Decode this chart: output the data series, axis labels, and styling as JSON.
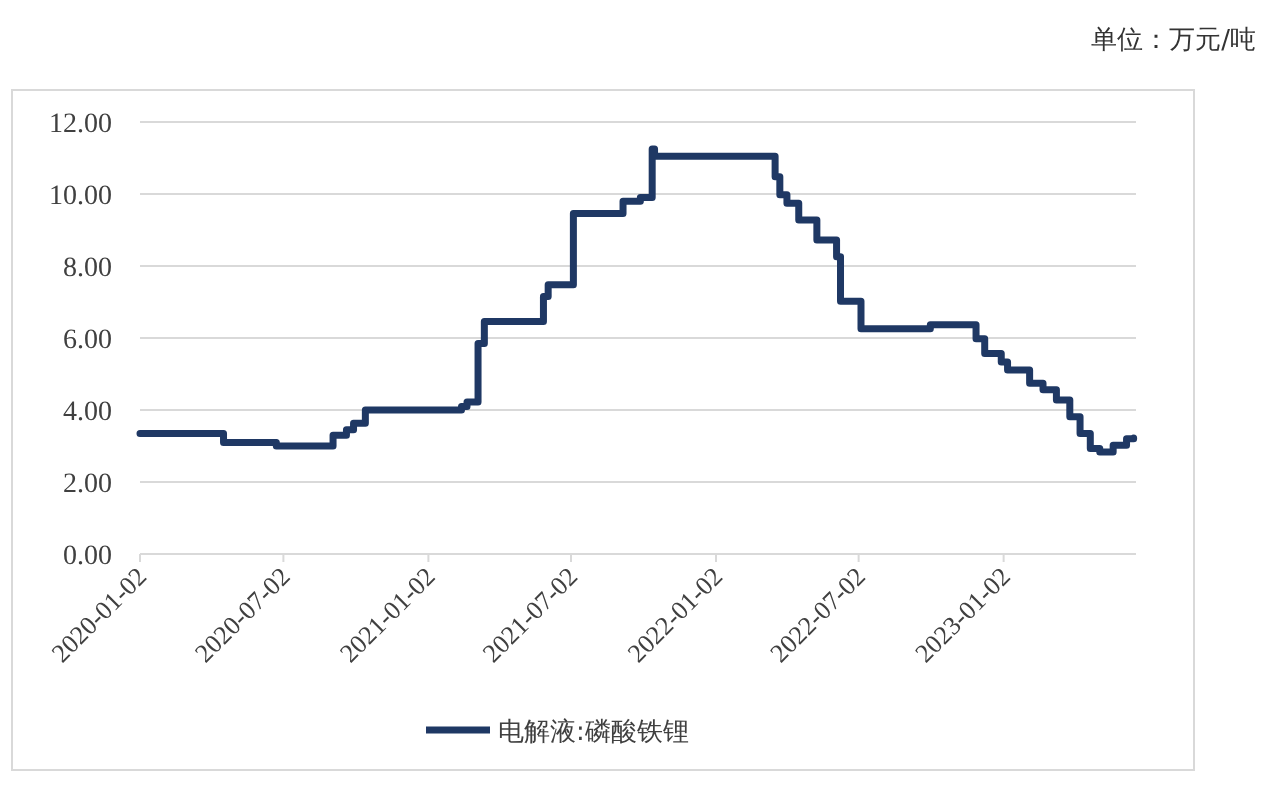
{
  "chart_data": {
    "type": "step",
    "annotations": [
      "单位：万元/吨"
    ],
    "x": [
      "2020-01-02",
      "2020-04-17",
      "2020-06-23",
      "2020-09-03",
      "2020-09-20",
      "2020-09-29",
      "2020-10-14",
      "2021-02-13",
      "2021-02-20",
      "2021-03-06",
      "2021-03-14",
      "2021-05-28",
      "2021-06-03",
      "2021-07-05",
      "2021-09-06",
      "2021-09-28",
      "2021-10-13",
      "2021-10-16",
      "2022-03-18",
      "2022-03-24",
      "2022-04-02",
      "2022-04-17",
      "2022-05-10",
      "2022-06-04",
      "2022-06-09",
      "2022-07-05",
      "2022-10-01",
      "2022-11-28",
      "2022-12-09",
      "2022-12-30",
      "2023-01-07",
      "2023-02-04",
      "2023-02-21",
      "2023-03-10",
      "2023-03-27",
      "2023-04-09",
      "2023-04-22",
      "2023-05-04",
      "2023-05-21",
      "2023-06-07",
      "2023-06-16"
    ],
    "series": [
      {
        "name": "电解液:磷酸铁锂",
        "color": "#1f3864",
        "values": [
          3.35,
          3.1,
          3.0,
          3.3,
          3.45,
          3.63,
          4.0,
          4.1,
          4.22,
          5.85,
          6.46,
          7.15,
          7.48,
          9.46,
          9.8,
          9.9,
          11.25,
          11.05,
          10.48,
          9.98,
          9.74,
          9.28,
          8.72,
          8.26,
          7.02,
          6.26,
          6.37,
          5.98,
          5.57,
          5.33,
          5.11,
          4.74,
          4.56,
          4.28,
          3.81,
          3.35,
          2.93,
          2.83,
          3.02,
          3.2,
          3.22
        ]
      }
    ],
    "xlim": [
      "2020-01-02",
      "2023-06-19"
    ],
    "xticks": [
      "2020-01-02",
      "2020-07-02",
      "2021-01-02",
      "2021-07-02",
      "2022-01-02",
      "2022-07-02",
      "2023-01-02"
    ],
    "ylim": [
      0,
      12
    ],
    "yticks": [
      {
        "value": 0,
        "label": "0.00"
      },
      {
        "value": 2,
        "label": "2.00"
      },
      {
        "value": 4,
        "label": "4.00"
      },
      {
        "value": 6,
        "label": "6.00"
      },
      {
        "value": 8,
        "label": "8.00"
      },
      {
        "value": 10,
        "label": "10.00"
      },
      {
        "value": 12,
        "label": "12.00"
      }
    ],
    "grid": "y",
    "legend": "bottom",
    "line_style": "solid",
    "marker": "none"
  }
}
